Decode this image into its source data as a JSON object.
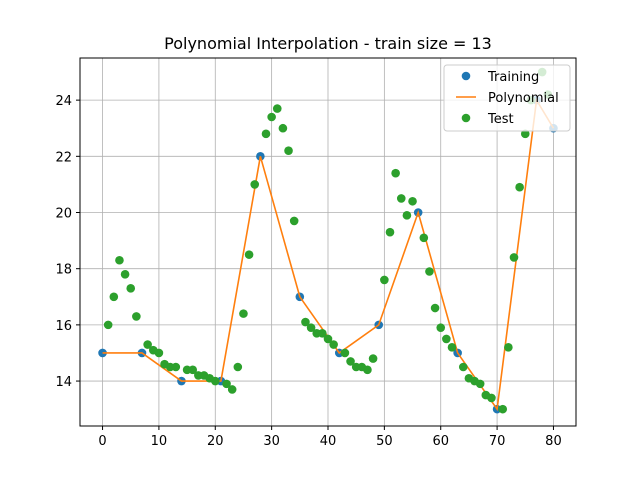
{
  "chart_data": {
    "type": "line",
    "title": "Polynomial Interpolation - train size = 13",
    "xlabel": "",
    "ylabel": "",
    "xlim": [
      -4,
      84
    ],
    "ylim": [
      12.4,
      25.5
    ],
    "xticks": [
      0,
      10,
      20,
      30,
      40,
      50,
      60,
      70,
      80
    ],
    "yticks": [
      14,
      16,
      18,
      20,
      22,
      24
    ],
    "grid": true,
    "legend_position": "top-right",
    "series": [
      {
        "name": "Training",
        "kind": "scatter",
        "color": "#1f77b4",
        "x": [
          0,
          7,
          14,
          21,
          28,
          35,
          42,
          49,
          56,
          63,
          70,
          77,
          80
        ],
        "y": [
          15.0,
          15.0,
          14.0,
          14.0,
          22.0,
          17.0,
          15.0,
          16.0,
          20.0,
          15.0,
          13.0,
          24.0,
          23.0
        ]
      },
      {
        "name": "Polynomial",
        "kind": "line",
        "color": "#ff7f0e",
        "x": [
          0,
          7,
          14,
          21,
          28,
          35,
          42,
          49,
          56,
          63,
          70,
          77,
          80
        ],
        "y": [
          15.0,
          15.0,
          14.0,
          14.0,
          22.0,
          17.0,
          15.0,
          16.0,
          20.0,
          15.0,
          13.0,
          24.0,
          23.0
        ]
      },
      {
        "name": "Test",
        "kind": "scatter",
        "color": "#2ca02c",
        "x": [
          1,
          2,
          3,
          4,
          5,
          6,
          8,
          9,
          10,
          11,
          12,
          13,
          15,
          16,
          17,
          18,
          19,
          20,
          22,
          23,
          24,
          25,
          26,
          27,
          29,
          30,
          31,
          32,
          33,
          34,
          36,
          37,
          38,
          39,
          40,
          41,
          43,
          44,
          45,
          46,
          47,
          48,
          50,
          51,
          52,
          53,
          54,
          55,
          57,
          58,
          59,
          60,
          61,
          62,
          64,
          65,
          66,
          67,
          68,
          69,
          71,
          72,
          73,
          74,
          75,
          76,
          78,
          79
        ],
        "y": [
          16.0,
          17.0,
          18.3,
          17.8,
          17.3,
          16.3,
          15.3,
          15.1,
          15.0,
          14.6,
          14.5,
          14.5,
          14.4,
          14.4,
          14.2,
          14.2,
          14.1,
          14.0,
          13.9,
          13.7,
          14.5,
          16.4,
          18.5,
          21.0,
          22.8,
          23.4,
          23.7,
          23.0,
          22.2,
          19.7,
          16.1,
          15.9,
          15.7,
          15.7,
          15.5,
          15.3,
          15.0,
          14.7,
          14.5,
          14.5,
          14.4,
          14.8,
          17.6,
          19.3,
          21.4,
          20.5,
          19.9,
          20.4,
          19.1,
          17.9,
          16.6,
          15.9,
          15.5,
          15.2,
          14.5,
          14.1,
          14.0,
          13.9,
          13.5,
          13.4,
          13.0,
          15.2,
          18.4,
          20.9,
          22.8,
          24.0,
          25.0,
          24.2
        ]
      }
    ]
  }
}
